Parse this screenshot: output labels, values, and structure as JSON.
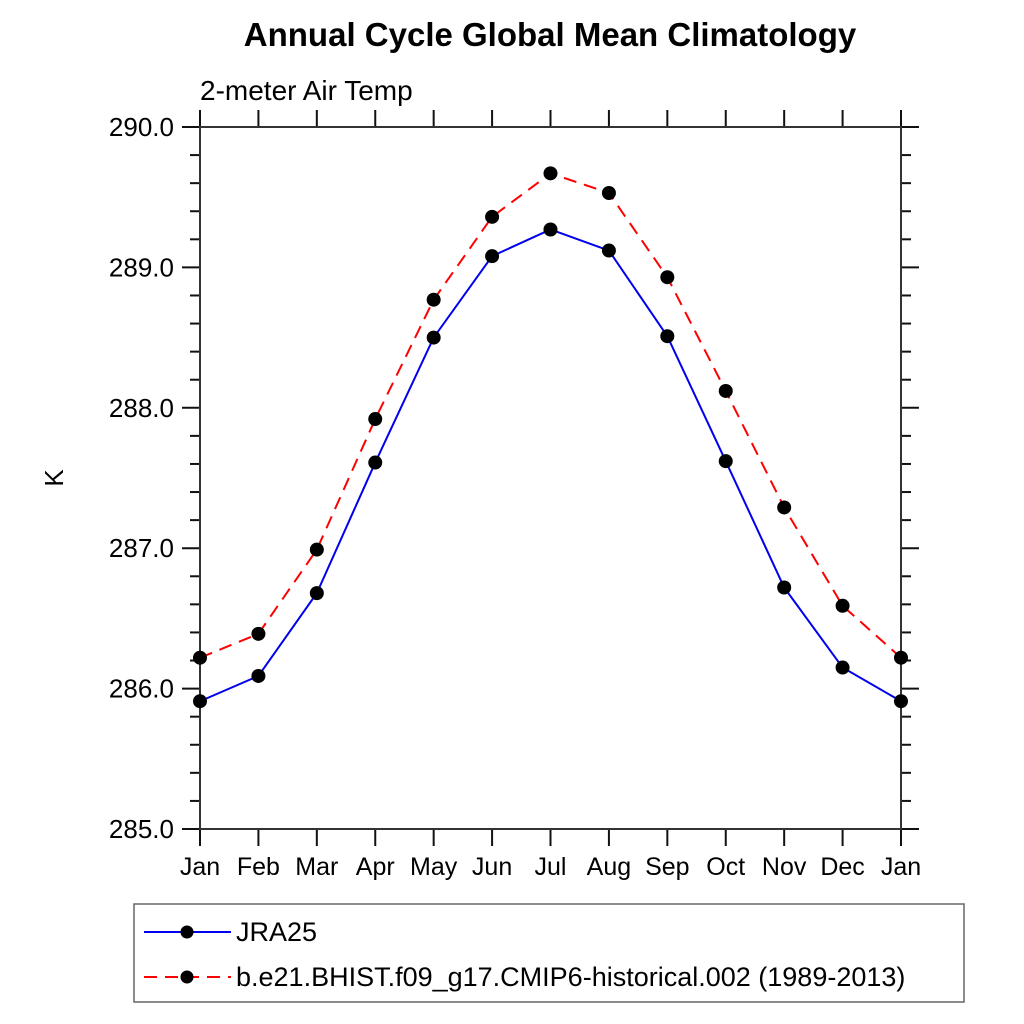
{
  "page": {
    "background_color": "#ffffff"
  },
  "chart_data": {
    "type": "line",
    "title": "Annual Cycle Global Mean Climatology",
    "subtitle": "2-meter Air Temp",
    "ylabel": "K",
    "xlabel": "",
    "x_tick_labels": [
      "Jan",
      "Feb",
      "Mar",
      "Apr",
      "May",
      "Jun",
      "Jul",
      "Aug",
      "Sep",
      "Oct",
      "Nov",
      "Dec",
      "Jan"
    ],
    "ylim": [
      285.0,
      290.0
    ],
    "y_major_tick_labels": [
      "285.0",
      "286.0",
      "287.0",
      "288.0",
      "289.0",
      "290.0"
    ],
    "y_major_tick_values": [
      285.0,
      286.0,
      287.0,
      288.0,
      289.0,
      290.0
    ],
    "y_minor_tick_step": 0.2,
    "grid": false,
    "axis_color": "#333333",
    "tick_color": "#111111",
    "marker_color": "#000000",
    "legend_position": "bottom-left-box",
    "legend_border_color": "#666666",
    "series": [
      {
        "name": "JRA25",
        "color": "#0000ee",
        "line_style": "solid",
        "marker": "circle",
        "values": [
          285.91,
          286.09,
          286.68,
          287.61,
          288.5,
          289.08,
          289.27,
          289.12,
          288.51,
          287.62,
          286.72,
          286.15,
          285.91
        ]
      },
      {
        "name": "b.e21.BHIST.f09_g17.CMIP6-historical.002 (1989-2013)",
        "color": "#ff0000",
        "line_style": "dashed",
        "marker": "circle",
        "values": [
          286.22,
          286.39,
          286.99,
          287.92,
          288.77,
          289.36,
          289.67,
          289.53,
          288.93,
          288.12,
          287.29,
          286.59,
          286.22
        ]
      }
    ]
  }
}
